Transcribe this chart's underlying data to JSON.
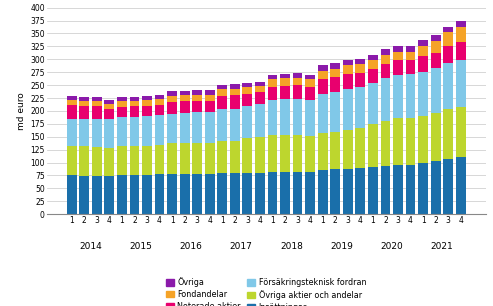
{
  "title": "",
  "ylabel": "md euro",
  "ylim": [
    0,
    400
  ],
  "yticks": [
    0,
    25,
    50,
    75,
    100,
    125,
    150,
    175,
    200,
    225,
    250,
    275,
    300,
    325,
    350,
    375,
    400
  ],
  "years": [
    2014,
    2015,
    2016,
    2017,
    2018,
    2019,
    2020,
    2021
  ],
  "quarters": [
    1,
    2,
    3,
    4
  ],
  "series": {
    "Insättningar": {
      "color": "#1a6faa",
      "values": [
        75,
        74,
        74,
        74,
        76,
        76,
        76,
        77,
        77,
        77,
        77,
        77,
        79,
        79,
        79,
        79,
        81,
        81,
        81,
        81,
        86,
        87,
        88,
        89,
        92,
        93,
        95,
        96,
        99,
        103,
        106,
        110
      ]
    },
    "Övriga aktier och andelar": {
      "color": "#bdd62e",
      "values": [
        58,
        58,
        57,
        55,
        57,
        57,
        57,
        57,
        60,
        60,
        60,
        60,
        63,
        63,
        68,
        70,
        73,
        73,
        73,
        70,
        72,
        73,
        76,
        78,
        83,
        88,
        91,
        91,
        92,
        93,
        98,
        98
      ]
    },
    "Försäkringsteknisk fordran": {
      "color": "#80c8e8",
      "values": [
        52,
        53,
        54,
        55,
        55,
        56,
        57,
        58,
        58,
        59,
        60,
        60,
        61,
        62,
        63,
        64,
        67,
        69,
        70,
        70,
        75,
        77,
        79,
        80,
        80,
        82,
        84,
        85,
        85,
        87,
        89,
        90
      ]
    },
    "Noterade aktier": {
      "color": "#e8006e",
      "values": [
        26,
        24,
        24,
        20,
        20,
        20,
        20,
        20,
        23,
        23,
        23,
        23,
        26,
        26,
        23,
        23,
        26,
        26,
        26,
        26,
        28,
        28,
        28,
        26,
        26,
        28,
        28,
        26,
        30,
        30,
        33,
        36
      ]
    },
    "Fondandelar": {
      "color": "#f5a327",
      "values": [
        10,
        10,
        10,
        10,
        11,
        11,
        11,
        11,
        11,
        11,
        11,
        11,
        13,
        13,
        13,
        13,
        14,
        14,
        14,
        14,
        17,
        17,
        17,
        17,
        17,
        17,
        17,
        17,
        20,
        23,
        26,
        28
      ]
    },
    "Övriga": {
      "color": "#8b1aaa",
      "values": [
        7,
        7,
        7,
        7,
        7,
        7,
        7,
        7,
        9,
        9,
        9,
        9,
        9,
        9,
        9,
        7,
        9,
        9,
        9,
        9,
        11,
        11,
        11,
        11,
        11,
        11,
        11,
        11,
        11,
        11,
        11,
        13
      ]
    }
  },
  "legend_col1": [
    "Övriga",
    "Noterade aktier",
    "Övriga aktier och andelar"
  ],
  "legend_col2": [
    "Fondandelar",
    "Försäkringsteknisk fordran",
    "Insättningar"
  ],
  "background_color": "#ffffff",
  "grid_color": "#c8c8c8"
}
